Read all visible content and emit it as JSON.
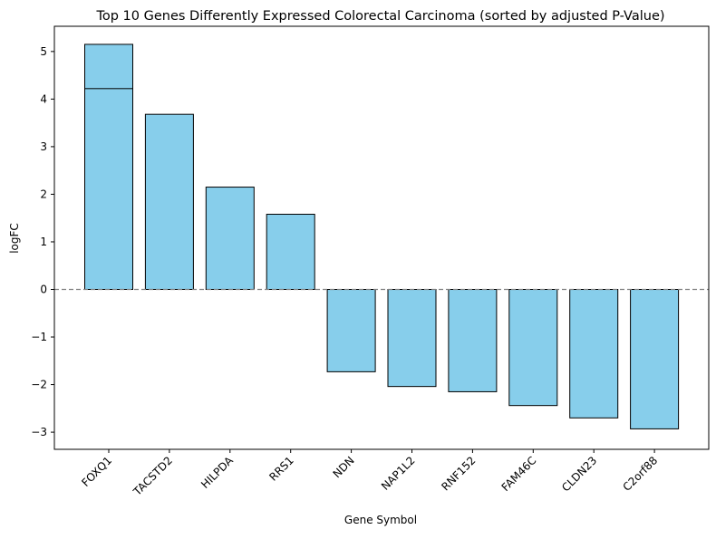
{
  "chart_data": {
    "type": "bar",
    "title": "Top 10 Genes Differently Expressed Colorectal Carcinoma (sorted by adjusted P-Value)",
    "xlabel": "Gene Symbol",
    "ylabel": "logFC",
    "categories": [
      "FOXQ1",
      "FOXQ1",
      "TACSTD2",
      "HILPDA",
      "RRS1",
      "NDN",
      "NAP1L2",
      "RNF152",
      "FAM46C",
      "CLDN23",
      "C2orf88"
    ],
    "values": [
      5.15,
      4.22,
      3.68,
      2.15,
      1.58,
      -1.73,
      -2.04,
      -2.15,
      -2.44,
      -2.7,
      -2.93
    ],
    "tick_labels": [
      "FOXQ1",
      "TACSTD2",
      "HILPDA",
      "RRS1",
      "NDN",
      "NAP1L2",
      "RNF152",
      "FAM46C",
      "CLDN23",
      "C2orf88"
    ],
    "yticks": [
      -3,
      -2,
      -1,
      0,
      1,
      2,
      3,
      4,
      5
    ],
    "ylim": [
      -3.36,
      5.53
    ],
    "bar_color": "#87CEEB",
    "edge_color": "#000000",
    "zero_line_color": "#808080",
    "grid": false,
    "legend": "none"
  }
}
